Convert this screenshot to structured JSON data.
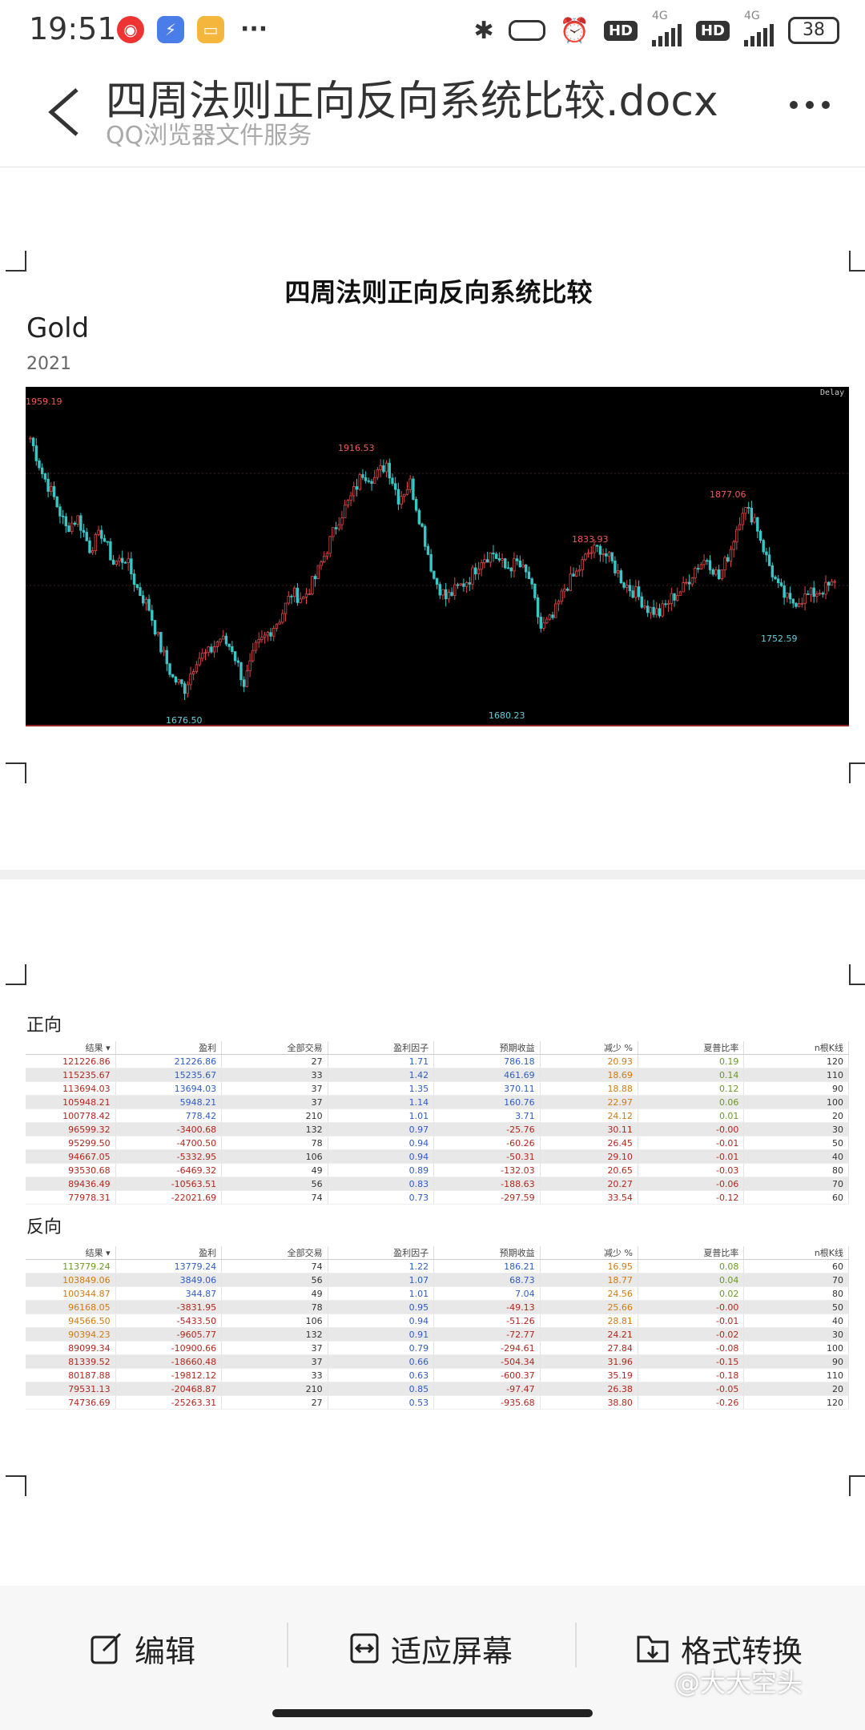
{
  "status": {
    "time": "19:51",
    "net1": "4G",
    "net2": "4G",
    "hd": "HD",
    "battery": "38"
  },
  "header": {
    "title": "四周法则正向反向系统比较.docx",
    "subtitle": "QQ浏览器文件服务"
  },
  "doc": {
    "heading": "四周法则正向反向系统比较",
    "chart_title": "Gold",
    "chart_subtitle": "2021",
    "chart_tag": "Delay"
  },
  "chart_data": {
    "type": "candlestick",
    "title": "Gold",
    "subtitle": "2021",
    "annotations": [
      {
        "label": "1959.19",
        "kind": "high"
      },
      {
        "label": "1676.50",
        "kind": "low"
      },
      {
        "label": "1916.53",
        "kind": "high"
      },
      {
        "label": "1680.23",
        "kind": "low"
      },
      {
        "label": "1833.93",
        "kind": "high"
      },
      {
        "label": "1877.06",
        "kind": "high"
      },
      {
        "label": "1752.59",
        "kind": "low"
      }
    ],
    "series_closes": [
      1940,
      1905,
      1880,
      1850,
      1860,
      1830,
      1845,
      1815,
      1820,
      1790,
      1770,
      1730,
      1700,
      1690,
      1720,
      1725,
      1740,
      1730,
      1695,
      1730,
      1745,
      1760,
      1785,
      1780,
      1800,
      1830,
      1860,
      1880,
      1905,
      1900,
      1915,
      1880,
      1895,
      1850,
      1800,
      1780,
      1790,
      1800,
      1820,
      1825,
      1810,
      1815,
      1800,
      1750,
      1760,
      1790,
      1805,
      1825,
      1830,
      1815,
      1795,
      1785,
      1770,
      1765,
      1780,
      1790,
      1810,
      1820,
      1800,
      1830,
      1870,
      1860,
      1820,
      1790,
      1775,
      1780,
      1785,
      1790,
      1795
    ]
  },
  "forward": {
    "label": "正向",
    "headers": [
      "结果 ▾",
      "盈利",
      "全部交易",
      "盈利因子",
      "预期收益",
      "减少 %",
      "夏普比率",
      "n根K线"
    ],
    "rows": [
      [
        "121226.86",
        "21226.86",
        "27",
        "1.71",
        "786.18",
        "20.93",
        "0.19",
        "120"
      ],
      [
        "115235.67",
        "15235.67",
        "33",
        "1.42",
        "461.69",
        "18.69",
        "0.14",
        "110"
      ],
      [
        "113694.03",
        "13694.03",
        "37",
        "1.35",
        "370.11",
        "18.88",
        "0.12",
        "90"
      ],
      [
        "105948.21",
        "5948.21",
        "37",
        "1.14",
        "160.76",
        "22.97",
        "0.06",
        "100"
      ],
      [
        "100778.42",
        "778.42",
        "210",
        "1.01",
        "3.71",
        "24.12",
        "0.01",
        "20"
      ],
      [
        "96599.32",
        "-3400.68",
        "132",
        "0.97",
        "-25.76",
        "30.11",
        "-0.00",
        "30"
      ],
      [
        "95299.50",
        "-4700.50",
        "78",
        "0.94",
        "-60.26",
        "26.45",
        "-0.01",
        "50"
      ],
      [
        "94667.05",
        "-5332.95",
        "106",
        "0.94",
        "-50.31",
        "29.10",
        "-0.01",
        "40"
      ],
      [
        "93530.68",
        "-6469.32",
        "49",
        "0.89",
        "-132.03",
        "20.65",
        "-0.03",
        "80"
      ],
      [
        "89436.49",
        "-10563.51",
        "56",
        "0.83",
        "-188.63",
        "20.27",
        "-0.06",
        "70"
      ],
      [
        "77978.31",
        "-22021.69",
        "74",
        "0.73",
        "-297.59",
        "33.54",
        "-0.12",
        "60"
      ]
    ]
  },
  "reverse": {
    "label": "反向",
    "headers": [
      "结果 ▾",
      "盈利",
      "全部交易",
      "盈利因子",
      "预期收益",
      "减少 %",
      "夏普比率",
      "n根K线"
    ],
    "rows": [
      [
        "113779.24",
        "13779.24",
        "74",
        "1.22",
        "186.21",
        "16.95",
        "0.08",
        "60"
      ],
      [
        "103849.06",
        "3849.06",
        "56",
        "1.07",
        "68.73",
        "18.77",
        "0.04",
        "70"
      ],
      [
        "100344.87",
        "344.87",
        "49",
        "1.01",
        "7.04",
        "24.56",
        "0.02",
        "80"
      ],
      [
        "96168.05",
        "-3831.95",
        "78",
        "0.95",
        "-49.13",
        "25.66",
        "-0.00",
        "50"
      ],
      [
        "94566.50",
        "-5433.50",
        "106",
        "0.94",
        "-51.26",
        "28.81",
        "-0.01",
        "40"
      ],
      [
        "90394.23",
        "-9605.77",
        "132",
        "0.91",
        "-72.77",
        "24.21",
        "-0.02",
        "30"
      ],
      [
        "89099.34",
        "-10900.66",
        "37",
        "0.79",
        "-294.61",
        "27.84",
        "-0.08",
        "100"
      ],
      [
        "81339.52",
        "-18660.48",
        "37",
        "0.66",
        "-504.34",
        "31.96",
        "-0.15",
        "90"
      ],
      [
        "80187.88",
        "-19812.12",
        "33",
        "0.63",
        "-600.37",
        "35.19",
        "-0.18",
        "110"
      ],
      [
        "79531.13",
        "-20468.87",
        "210",
        "0.85",
        "-97.47",
        "26.38",
        "-0.05",
        "20"
      ],
      [
        "74736.69",
        "-25263.31",
        "27",
        "0.53",
        "-935.68",
        "38.80",
        "-0.26",
        "120"
      ]
    ]
  },
  "toolbar": {
    "edit": "编辑",
    "fit": "适应屏幕",
    "convert": "格式转换"
  },
  "watermark": "@大大空头",
  "colors": {
    "bull": "#e04848",
    "bear": "#39c6c6",
    "chart_bg": "#000000"
  }
}
